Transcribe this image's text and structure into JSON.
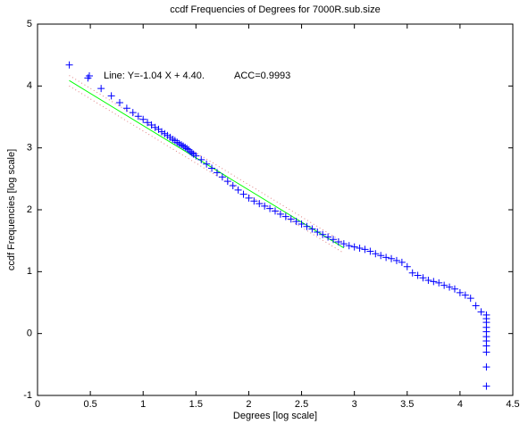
{
  "chart_data": {
    "type": "scatter",
    "title": "ccdf Frequencies of Degrees for 7000R.sub.size",
    "x_label": "Degrees [log scale]",
    "y_label": "ccdf Frequencies [log scale]",
    "annotations": [
      "Line: Y=-1.04 X + 4.40.",
      "ACC=0.9993"
    ],
    "xlim": [
      0,
      4.5
    ],
    "xticks": [
      0,
      0.5,
      1,
      1.5,
      2,
      2.5,
      3,
      3.5,
      4,
      4.5
    ],
    "ylim": [
      -1,
      5
    ],
    "yticks": [
      -1,
      0,
      1,
      2,
      3,
      4,
      5
    ],
    "series": [
      {
        "color": "#0000ff",
        "x": [
          0.301,
          0.477,
          0.602,
          0.699,
          0.778,
          0.845,
          0.903,
          0.954,
          1.0,
          1.041,
          1.079,
          1.114,
          1.146,
          1.176,
          1.204,
          1.23,
          1.255,
          1.279,
          1.301,
          1.322,
          1.342,
          1.362,
          1.38,
          1.398,
          1.415,
          1.431,
          1.447,
          1.462,
          1.477,
          1.5,
          1.55,
          1.6,
          1.65,
          1.7,
          1.75,
          1.8,
          1.85,
          1.9,
          1.95,
          2.0,
          2.05,
          2.1,
          2.15,
          2.2,
          2.25,
          2.3,
          2.35,
          2.4,
          2.45,
          2.5,
          2.55,
          2.6,
          2.65,
          2.7,
          2.75,
          2.8,
          2.85,
          2.9,
          2.95,
          3.0,
          3.05,
          3.1,
          3.15,
          3.2,
          3.25,
          3.3,
          3.35,
          3.4,
          3.45,
          3.5,
          3.55,
          3.6,
          3.65,
          3.7,
          3.75,
          3.8,
          3.85,
          3.9,
          3.95,
          4.0,
          4.05,
          4.1,
          4.15,
          4.2,
          4.25,
          4.25,
          4.25,
          4.25,
          4.25,
          4.25,
          4.25,
          4.25,
          4.25,
          4.25,
          4.25
        ],
        "values": [
          4.34,
          4.13,
          3.96,
          3.84,
          3.73,
          3.64,
          3.57,
          3.51,
          3.46,
          3.41,
          3.37,
          3.33,
          3.3,
          3.26,
          3.23,
          3.2,
          3.17,
          3.14,
          3.12,
          3.09,
          3.07,
          3.05,
          3.03,
          3.01,
          2.99,
          2.97,
          2.94,
          2.92,
          2.9,
          2.87,
          2.81,
          2.74,
          2.67,
          2.6,
          2.53,
          2.46,
          2.39,
          2.32,
          2.25,
          2.19,
          2.14,
          2.1,
          2.06,
          2.02,
          1.98,
          1.93,
          1.89,
          1.85,
          1.81,
          1.77,
          1.73,
          1.69,
          1.64,
          1.6,
          1.56,
          1.52,
          1.48,
          1.45,
          1.42,
          1.4,
          1.38,
          1.36,
          1.33,
          1.29,
          1.26,
          1.23,
          1.21,
          1.18,
          1.15,
          1.08,
          0.98,
          0.94,
          0.9,
          0.86,
          0.84,
          0.82,
          0.78,
          0.75,
          0.72,
          0.66,
          0.62,
          0.57,
          0.45,
          0.35,
          0.3,
          0.24,
          0.18,
          0.1,
          0.03,
          -0.05,
          -0.12,
          -0.2,
          -0.3,
          -0.54,
          -0.85
        ]
      }
    ],
    "fit_line": {
      "color": "#00ff00",
      "x": [
        0.3,
        2.9
      ],
      "values": [
        4.088,
        1.384
      ]
    },
    "bounds": [
      {
        "color": "#e08080",
        "x": [
          0.3,
          2.9
        ],
        "values": [
          4.17,
          1.47
        ]
      },
      {
        "color": "#e08080",
        "x": [
          0.3,
          2.9
        ],
        "values": [
          4.0,
          1.3
        ]
      }
    ]
  }
}
